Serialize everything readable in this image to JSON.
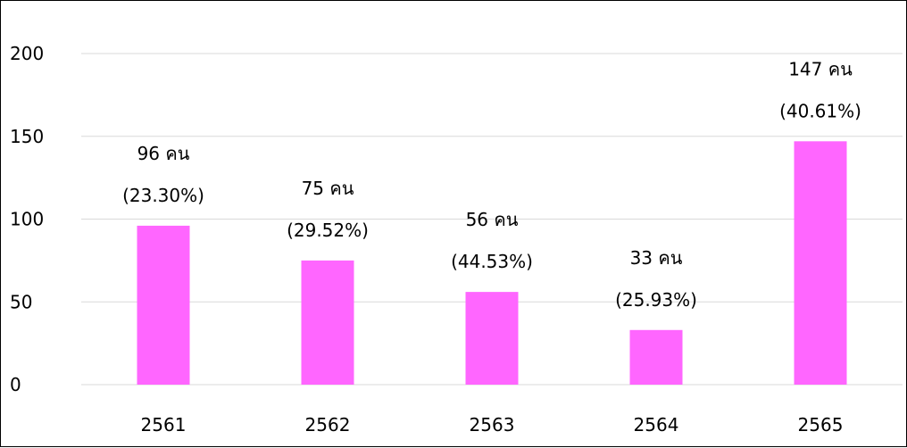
{
  "chart_data": {
    "type": "bar",
    "categories": [
      "2561",
      "2562",
      "2563",
      "2564",
      "2565"
    ],
    "values": [
      96,
      75,
      56,
      33,
      147
    ],
    "data_labels": [
      [
        "96 คน",
        "(23.30%)"
      ],
      [
        "75 คน",
        "(29.52%)"
      ],
      [
        "56 คน",
        "(44.53%)"
      ],
      [
        "33 คน",
        "(25.93%)"
      ],
      [
        "147 คน",
        "(40.61%)"
      ]
    ],
    "ylim": [
      0,
      200
    ],
    "yticks": [
      "0",
      "50",
      "100",
      "150",
      "200"
    ],
    "grid": true,
    "legend": "none",
    "bar_color": "#ff66ff",
    "grid_color": "#d9d9d9"
  }
}
